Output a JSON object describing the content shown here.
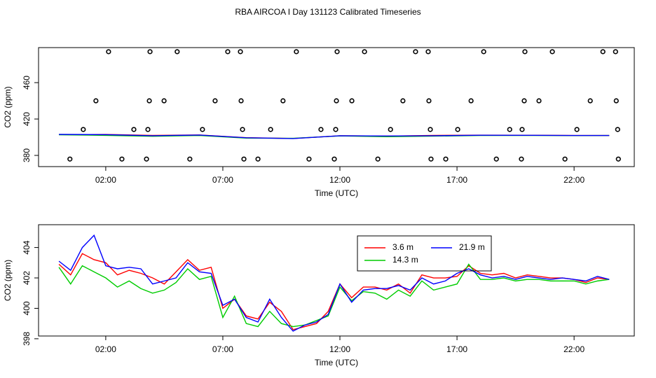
{
  "chart_data": [
    {
      "type": "line",
      "title": "RBA AIRCOA I  Day 131123  Calibrated Timeseries",
      "x_label": "Time (UTC)",
      "y_label": "CO2 (ppm)",
      "xlim": [
        -0.87,
        24.57
      ],
      "ylim": [
        367.7,
        498.5
      ],
      "xticks": [
        {
          "value": 2,
          "label": "02:00"
        },
        {
          "value": 7,
          "label": "07:00"
        },
        {
          "value": 12,
          "label": "12:00"
        },
        {
          "value": 17,
          "label": "17:00"
        },
        {
          "value": 22,
          "label": "22:00"
        }
      ],
      "yticks": [
        380,
        420,
        460
      ],
      "x": [
        0,
        2,
        4,
        6,
        8,
        10,
        12,
        14,
        16,
        18,
        20,
        22,
        23.5
      ],
      "series": [
        {
          "color": "#ff0000",
          "values": [
            402.9,
            403.0,
            402.0,
            402.5,
            399.5,
            398.6,
            401.6,
            401.2,
            402.0,
            402.3,
            402.2,
            401.9,
            401.9
          ]
        },
        {
          "color": "#00cc00",
          "values": [
            402.7,
            402.0,
            401.0,
            401.9,
            399.0,
            398.8,
            401.4,
            400.6,
            401.2,
            401.9,
            401.9,
            401.8,
            401.9
          ]
        },
        {
          "color": "#0000ff",
          "values": [
            403.1,
            402.8,
            401.6,
            402.4,
            399.4,
            398.5,
            401.6,
            401.3,
            401.6,
            402.2,
            402.1,
            401.9,
            401.9
          ]
        }
      ],
      "points": {
        "type": "scatter",
        "color": "#000000",
        "x": [
          2.12,
          3.89,
          5.05,
          7.21,
          7.75,
          10.14,
          11.88,
          13.05,
          15.23,
          15.77,
          18.14,
          19.9,
          21.07,
          23.23,
          23.77,
          1.58,
          3.86,
          4.49,
          6.67,
          7.78,
          9.57,
          11.85,
          12.51,
          14.69,
          15.8,
          17.6,
          19.87,
          20.5,
          22.69,
          23.8,
          1.04,
          3.2,
          3.8,
          6.13,
          7.84,
          9.04,
          11.19,
          11.82,
          14.16,
          15.86,
          17.03,
          19.25,
          19.78,
          22.12,
          23.86,
          0.47,
          2.69,
          3.74,
          5.59,
          7.9,
          8.5,
          10.68,
          11.76,
          13.62,
          15.89,
          16.52,
          18.68,
          19.75,
          21.61,
          23.89
        ],
        "values": [
          494,
          494,
          494,
          494,
          494,
          494,
          494,
          494,
          494,
          494,
          494,
          494,
          494,
          494,
          494,
          440,
          440,
          440,
          440,
          440,
          440,
          440,
          440,
          440,
          440,
          440,
          440,
          440,
          440,
          440,
          408.5,
          408.5,
          408.5,
          408.5,
          408.5,
          408.5,
          408.5,
          408.5,
          408.5,
          408.5,
          408.5,
          408.5,
          408.5,
          408.5,
          408.5,
          376,
          376,
          376,
          376,
          376,
          376,
          376,
          376,
          376,
          376,
          376,
          376,
          376,
          376,
          376
        ]
      }
    },
    {
      "type": "line",
      "x_label": "Time (UTC)",
      "y_label": "CO2 (ppm)",
      "xlim": [
        -0.87,
        24.57
      ],
      "ylim": [
        398.18,
        405.5
      ],
      "xticks": [
        {
          "value": 2,
          "label": "02:00"
        },
        {
          "value": 7,
          "label": "07:00"
        },
        {
          "value": 12,
          "label": "12:00"
        },
        {
          "value": 17,
          "label": "17:00"
        },
        {
          "value": 22,
          "label": "22:00"
        }
      ],
      "yticks": [
        398,
        400,
        402,
        404
      ],
      "legend": "top-center",
      "x": [
        0,
        0.5,
        1,
        1.5,
        2,
        2.5,
        3,
        3.5,
        4,
        4.5,
        5,
        5.5,
        6,
        6.5,
        7,
        7.5,
        8,
        8.5,
        9,
        9.5,
        10,
        10.5,
        11,
        11.5,
        12,
        12.5,
        13,
        13.5,
        14,
        14.5,
        15,
        15.5,
        16,
        16.5,
        17,
        17.5,
        18,
        18.5,
        19,
        19.5,
        20,
        20.5,
        21,
        21.5,
        22,
        22.5,
        23,
        23.5
      ],
      "series": [
        {
          "name": "3.6 m",
          "color": "#ff0000",
          "values": [
            402.9,
            402.2,
            403.6,
            403.2,
            403.0,
            402.2,
            402.5,
            402.3,
            402.0,
            401.6,
            402.4,
            403.2,
            402.5,
            402.7,
            400.0,
            400.6,
            399.5,
            399.3,
            400.4,
            399.8,
            398.6,
            398.8,
            399.0,
            399.8,
            401.6,
            400.7,
            401.4,
            401.4,
            401.2,
            401.6,
            401.0,
            402.2,
            402.0,
            402.0,
            402.1,
            402.8,
            402.3,
            402.2,
            402.3,
            402.0,
            402.2,
            402.1,
            402.0,
            402.0,
            401.9,
            401.7,
            402.0,
            401.9
          ]
        },
        {
          "name": "14.3 m",
          "color": "#00cc00",
          "values": [
            402.7,
            401.6,
            402.8,
            402.4,
            402.0,
            401.4,
            401.8,
            401.3,
            401.0,
            401.2,
            401.7,
            402.6,
            401.9,
            402.1,
            399.4,
            400.8,
            399.0,
            398.8,
            399.8,
            399.0,
            398.8,
            398.9,
            399.2,
            399.5,
            401.4,
            400.5,
            401.1,
            401.0,
            400.6,
            401.2,
            400.8,
            401.8,
            401.2,
            401.4,
            401.6,
            402.9,
            401.9,
            401.9,
            402.0,
            401.8,
            401.9,
            401.9,
            401.8,
            401.8,
            401.8,
            401.6,
            401.8,
            401.9
          ]
        },
        {
          "name": "21.9 m",
          "color": "#0000ff",
          "values": [
            403.1,
            402.5,
            404.0,
            404.8,
            402.8,
            402.6,
            402.7,
            402.6,
            401.6,
            401.8,
            402.0,
            403.0,
            402.4,
            402.3,
            400.2,
            400.6,
            399.4,
            399.1,
            400.6,
            399.4,
            398.5,
            398.9,
            399.1,
            399.6,
            401.6,
            400.4,
            401.2,
            401.3,
            401.3,
            401.5,
            401.2,
            402.0,
            401.6,
            401.8,
            402.3,
            402.6,
            402.2,
            402.0,
            402.1,
            401.9,
            402.1,
            402.0,
            401.9,
            402.0,
            401.9,
            401.8,
            402.1,
            401.9
          ]
        }
      ]
    }
  ]
}
